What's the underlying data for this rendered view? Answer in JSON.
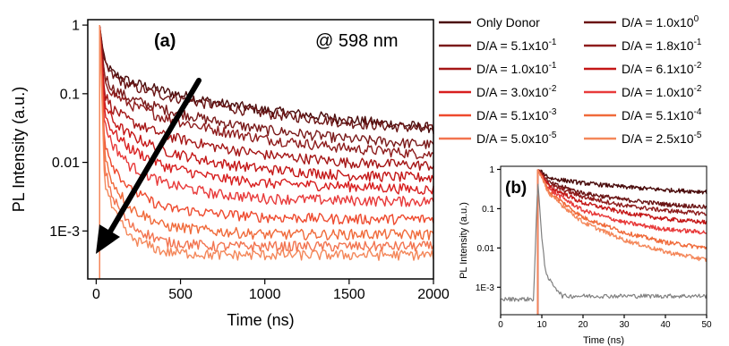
{
  "figure": {
    "panel_a_label": "(a)",
    "panel_b_label": "(b)",
    "annotation": "@ 598 nm"
  },
  "legend": [
    {
      "label": "Only Donor",
      "base": "Only Donor",
      "exp": "",
      "color": "#4a0c0c"
    },
    {
      "label": "D/A = 1.0x10^0",
      "base": "D/A = 1.0x10",
      "exp": "0",
      "color": "#6a1414"
    },
    {
      "label": "D/A = 5.1x10^-1",
      "base": "D/A = 5.1x10",
      "exp": "-1",
      "color": "#7a1a1a"
    },
    {
      "label": "D/A = 1.8x10^-1",
      "base": "D/A = 1.8x10",
      "exp": "-1",
      "color": "#8e1c1c"
    },
    {
      "label": "D/A = 1.0x10^-1",
      "base": "D/A = 1.0x10",
      "exp": "-1",
      "color": "#a51616"
    },
    {
      "label": "D/A = 6.1x10^-2",
      "base": "D/A = 6.1x10",
      "exp": "-2",
      "color": "#c41616"
    },
    {
      "label": "D/A = 3.0x10^-2",
      "base": "D/A = 3.0x10",
      "exp": "-2",
      "color": "#d81e1e"
    },
    {
      "label": "D/A = 1.0x10^-2",
      "base": "D/A = 1.0x10",
      "exp": "-2",
      "color": "#e83a3a"
    },
    {
      "label": "D/A = 5.1x10^-3",
      "base": "D/A = 5.1x10",
      "exp": "-3",
      "color": "#ee4a2e"
    },
    {
      "label": "D/A = 5.1x10^-4",
      "base": "D/A = 5.1x10",
      "exp": "-4",
      "color": "#f06a3a"
    },
    {
      "label": "D/A = 5.0x10^-5",
      "base": "D/A = 5.0x10",
      "exp": "-5",
      "color": "#f2734f"
    },
    {
      "label": "D/A = 2.5x10^-5",
      "base": "D/A = 2.5x10",
      "exp": "-5",
      "color": "#f4875a"
    }
  ],
  "chart_data": [
    {
      "panel": "a",
      "type": "line",
      "xlabel": "Time (ns)",
      "ylabel": "PL Intensity (a.u.)",
      "x_ticks": [
        0,
        500,
        1000,
        1500,
        2000
      ],
      "y_ticks": [
        0.001,
        0.01,
        0.1,
        1
      ],
      "y_tick_labels": [
        "1E-3",
        "0.01",
        "0.1",
        "1"
      ],
      "xlim": [
        -50,
        2000
      ],
      "ylim": [
        0.0002,
        1.2
      ],
      "y_scale": "log",
      "peak_time": 20,
      "series": [
        {
          "name": "Only Donor",
          "color": "#4a0c0c",
          "t": [
            20,
            50,
            100,
            200,
            400,
            700,
            1000,
            1500,
            2000
          ],
          "y": [
            1,
            0.28,
            0.2,
            0.15,
            0.11,
            0.075,
            0.058,
            0.042,
            0.032
          ]
        },
        {
          "name": "D/A = 1.0x10^0",
          "color": "#6a1414",
          "t": [
            20,
            50,
            100,
            200,
            400,
            700,
            1000,
            1500,
            2000
          ],
          "y": [
            1,
            0.26,
            0.18,
            0.13,
            0.095,
            0.068,
            0.052,
            0.038,
            0.03
          ]
        },
        {
          "name": "D/A = 5.1x10^-1",
          "color": "#7a1a1a",
          "t": [
            20,
            50,
            100,
            200,
            400,
            700,
            1000,
            1500,
            2000
          ],
          "y": [
            1,
            0.18,
            0.12,
            0.085,
            0.06,
            0.04,
            0.03,
            0.022,
            0.018
          ]
        },
        {
          "name": "D/A = 1.8x10^-1",
          "color": "#8e1c1c",
          "t": [
            20,
            50,
            100,
            200,
            400,
            700,
            1000,
            1500,
            2000
          ],
          "y": [
            1,
            0.16,
            0.1,
            0.07,
            0.045,
            0.03,
            0.022,
            0.016,
            0.013
          ]
        },
        {
          "name": "D/A = 1.0x10^-1",
          "color": "#a51616",
          "t": [
            20,
            50,
            100,
            200,
            400,
            700,
            1000,
            1500,
            2000
          ],
          "y": [
            1,
            0.1,
            0.06,
            0.04,
            0.025,
            0.017,
            0.013,
            0.01,
            0.009
          ]
        },
        {
          "name": "D/A = 6.1x10^-2",
          "color": "#c41616",
          "t": [
            20,
            50,
            100,
            200,
            400,
            700,
            1000,
            1500,
            2000
          ],
          "y": [
            1,
            0.07,
            0.04,
            0.025,
            0.015,
            0.01,
            0.008,
            0.0065,
            0.006
          ]
        },
        {
          "name": "D/A = 3.0x10^-2",
          "color": "#d81e1e",
          "t": [
            20,
            50,
            100,
            200,
            400,
            700,
            1000,
            1500,
            2000
          ],
          "y": [
            1,
            0.05,
            0.028,
            0.016,
            0.009,
            0.006,
            0.005,
            0.0045,
            0.004
          ]
        },
        {
          "name": "D/A = 1.0x10^-2",
          "color": "#e83a3a",
          "t": [
            20,
            50,
            100,
            200,
            400,
            700,
            1000,
            1500,
            2000
          ],
          "y": [
            1,
            0.035,
            0.018,
            0.009,
            0.005,
            0.0035,
            0.003,
            0.0028,
            0.0027
          ]
        },
        {
          "name": "D/A = 5.1x10^-3",
          "color": "#ee4a2e",
          "t": [
            20,
            50,
            100,
            200,
            400,
            700,
            1000,
            1500,
            2000
          ],
          "y": [
            1,
            0.02,
            0.009,
            0.004,
            0.0022,
            0.0018,
            0.0016,
            0.0015,
            0.0015
          ]
        },
        {
          "name": "D/A = 5.1x10^-4",
          "color": "#f06a3a",
          "t": [
            20,
            50,
            100,
            200,
            400,
            700,
            1000,
            1500,
            2000
          ],
          "y": [
            1,
            0.012,
            0.005,
            0.0022,
            0.0012,
            0.001,
            0.0009,
            0.0009,
            0.0009
          ]
        },
        {
          "name": "D/A = 5.0x10^-5",
          "color": "#f2734f",
          "t": [
            20,
            50,
            100,
            200,
            400,
            700,
            1000,
            1500,
            2000
          ],
          "y": [
            1,
            0.008,
            0.003,
            0.0012,
            0.0007,
            0.0006,
            0.0006,
            0.0006,
            0.0006
          ]
        },
        {
          "name": "D/A = 2.5x10^-5",
          "color": "#f4875a",
          "t": [
            20,
            50,
            100,
            200,
            400,
            700,
            1000,
            1500,
            2000
          ],
          "y": [
            1,
            0.005,
            0.002,
            0.0008,
            0.0005,
            0.00045,
            0.00045,
            0.00045,
            0.00045
          ]
        }
      ]
    },
    {
      "panel": "b",
      "type": "line",
      "xlabel": "Time (ns)",
      "ylabel": "PL Intensity (a.u.)",
      "x_ticks": [
        0,
        10,
        20,
        30,
        40,
        50
      ],
      "y_ticks": [
        0.001,
        0.01,
        0.1,
        1
      ],
      "y_tick_labels": [
        "1E-3",
        "0.01",
        "0.1",
        "1"
      ],
      "xlim": [
        0,
        50
      ],
      "ylim": [
        0.0002,
        1.2
      ],
      "y_scale": "log",
      "peak_time": 9,
      "series": [
        {
          "name": "Only Donor",
          "color": "#4a0c0c",
          "t": [
            9,
            12,
            20,
            30,
            40,
            50
          ],
          "y": [
            1,
            0.6,
            0.45,
            0.36,
            0.3,
            0.27
          ]
        },
        {
          "name": "D/A = 1.0x10^0",
          "color": "#6a1414",
          "t": [
            9,
            12,
            20,
            30,
            40,
            50
          ],
          "y": [
            1,
            0.45,
            0.25,
            0.17,
            0.13,
            0.11
          ]
        },
        {
          "name": "D/A = 1.8x10^-1",
          "color": "#8e1c1c",
          "t": [
            9,
            12,
            20,
            30,
            40,
            50
          ],
          "y": [
            1,
            0.4,
            0.2,
            0.12,
            0.09,
            0.075
          ]
        },
        {
          "name": "D/A = 6.1x10^-2",
          "color": "#c41616",
          "t": [
            9,
            12,
            20,
            30,
            40,
            50
          ],
          "y": [
            1,
            0.35,
            0.14,
            0.08,
            0.055,
            0.045
          ]
        },
        {
          "name": "D/A = 1.0x10^-2",
          "color": "#e83a3a",
          "t": [
            9,
            12,
            20,
            30,
            40,
            50
          ],
          "y": [
            1,
            0.3,
            0.09,
            0.045,
            0.03,
            0.025
          ]
        },
        {
          "name": "D/A = 5.1x10^-4",
          "color": "#f06a3a",
          "t": [
            9,
            12,
            20,
            30,
            40,
            50
          ],
          "y": [
            1,
            0.25,
            0.06,
            0.025,
            0.014,
            0.01
          ]
        },
        {
          "name": "D/A = 2.5x10^-5",
          "color": "#f4875a",
          "t": [
            9,
            12,
            20,
            30,
            40,
            50
          ],
          "y": [
            1,
            0.22,
            0.045,
            0.016,
            0.008,
            0.005
          ]
        },
        {
          "name": "",
          "color": "#808080",
          "t": [
            0,
            8,
            9,
            10,
            11,
            15,
            30,
            50
          ],
          "y": [
            0.0005,
            0.0005,
            0.5,
            0.02,
            0.002,
            0.0006,
            0.0006,
            0.0006
          ]
        }
      ]
    }
  ]
}
